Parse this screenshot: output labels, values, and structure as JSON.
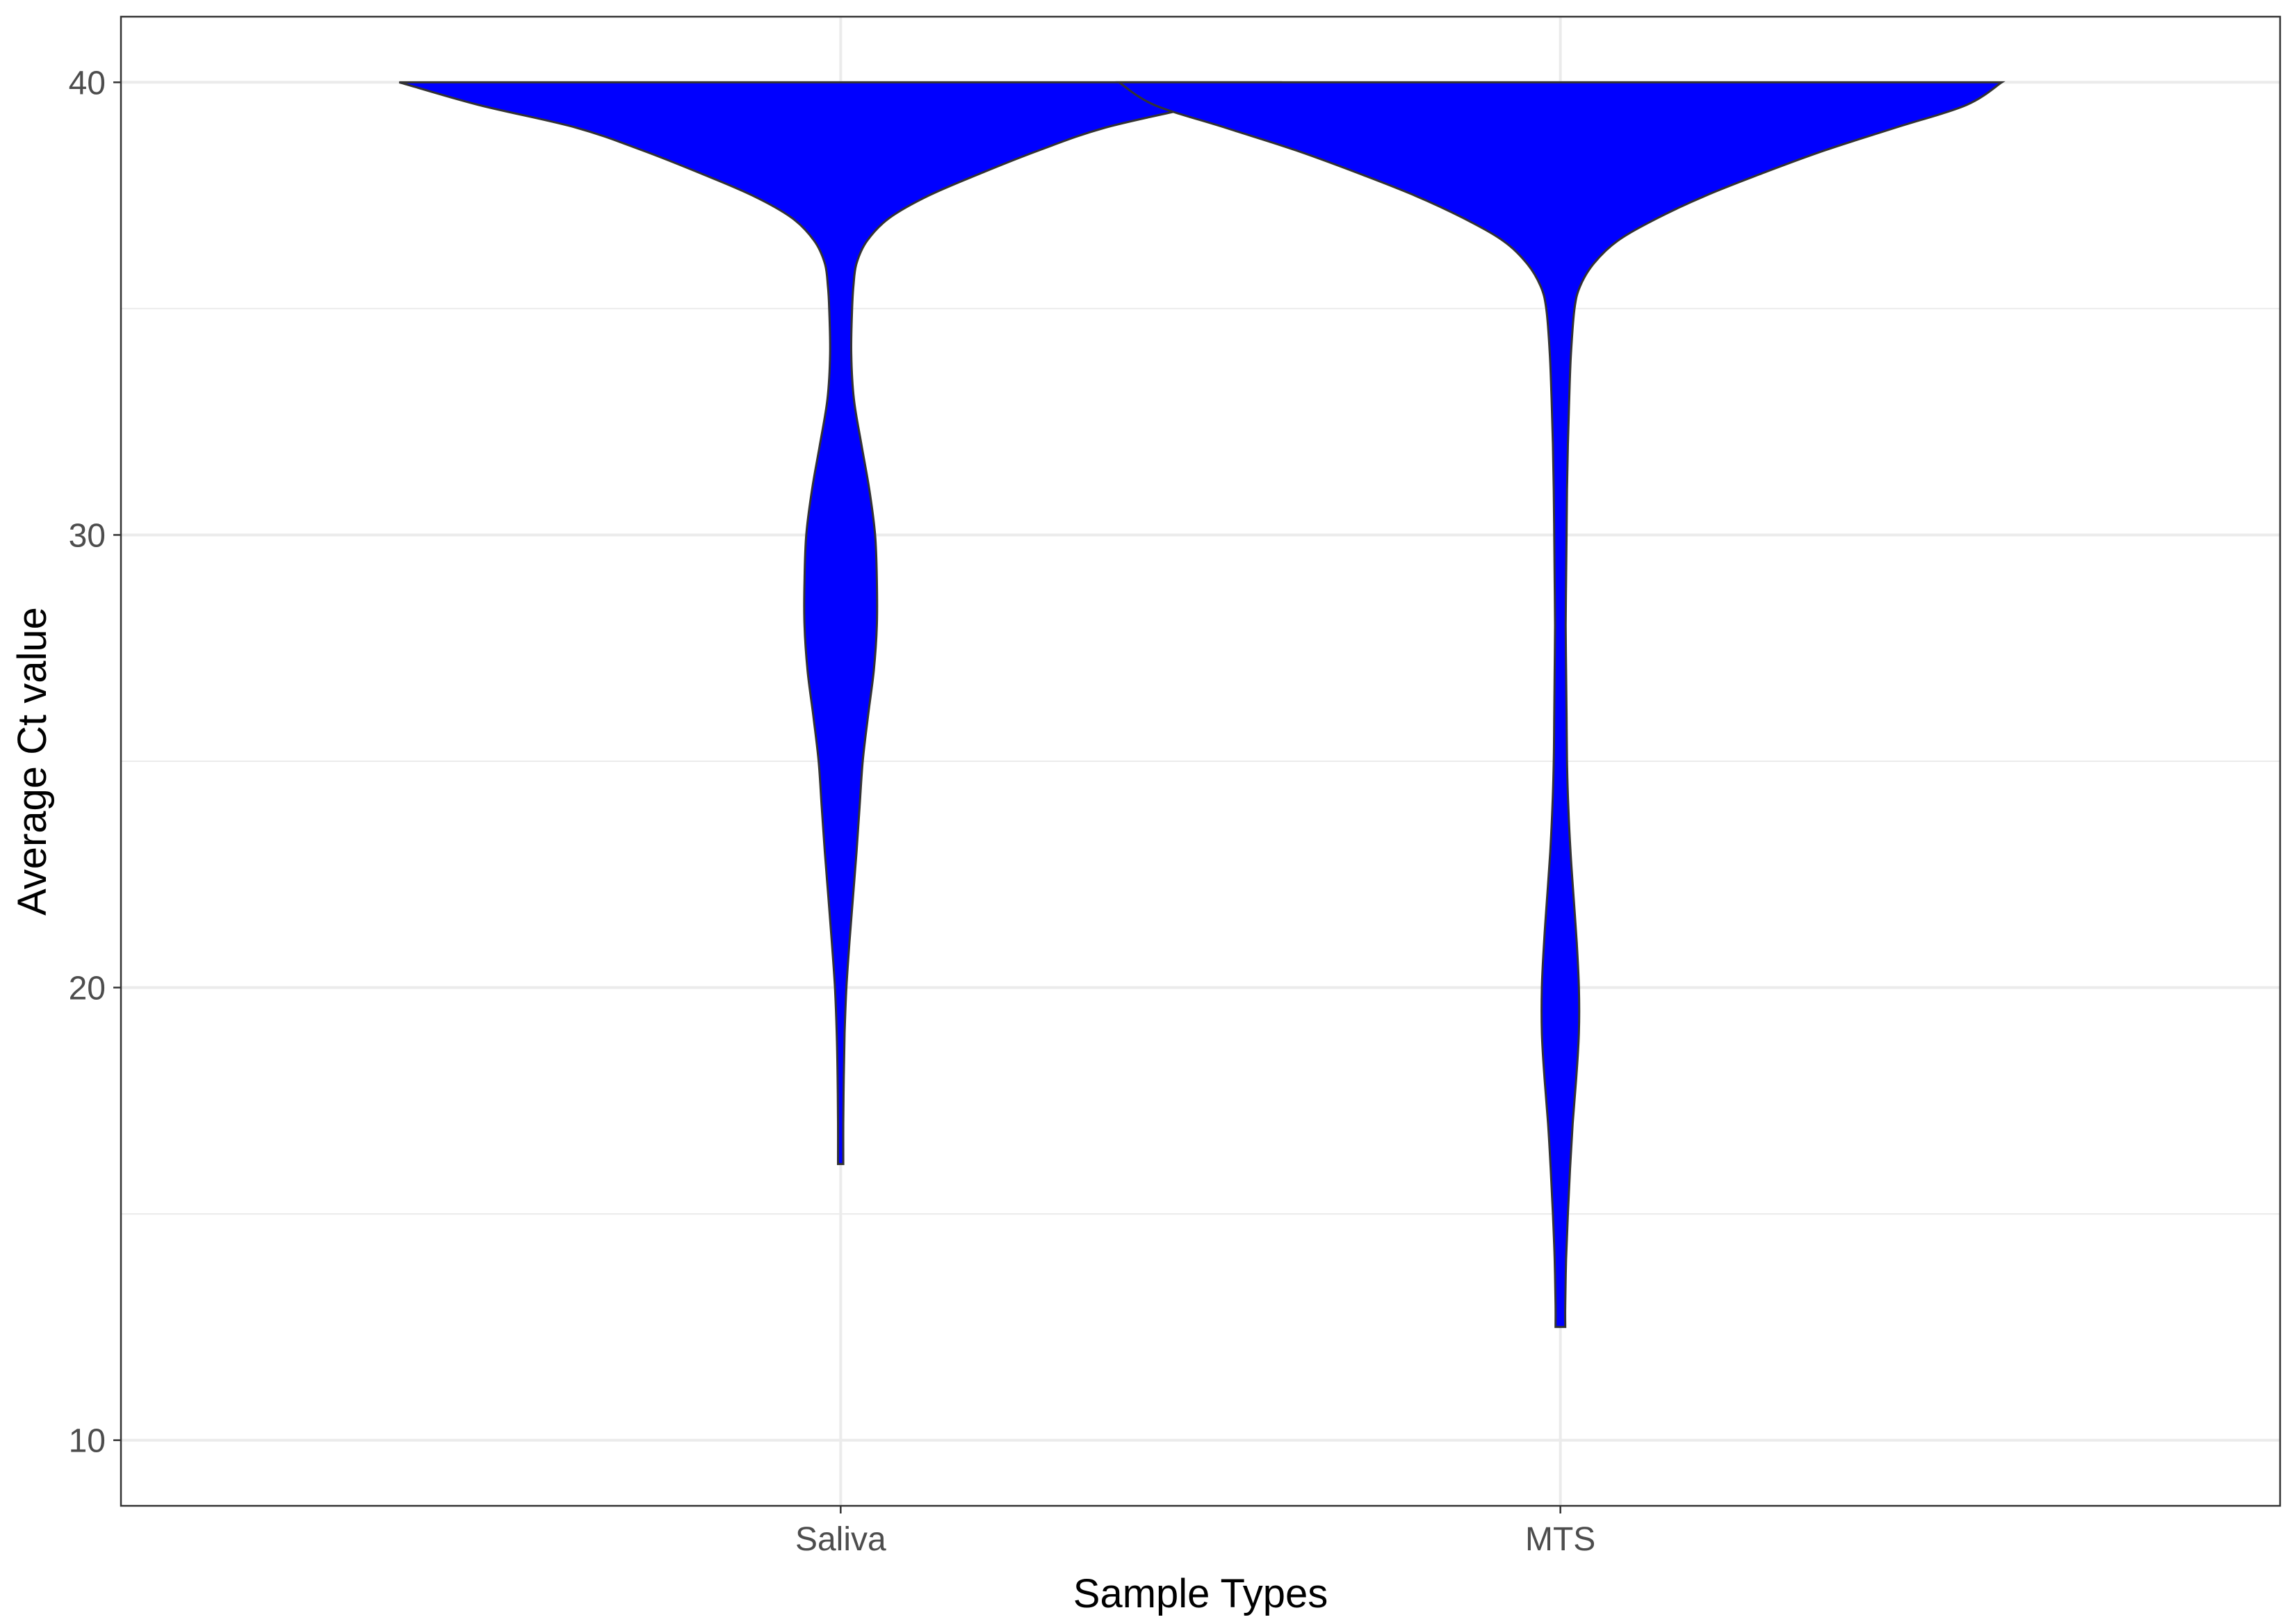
{
  "chart_data": {
    "type": "violin",
    "title": "",
    "xlabel": "Sample Types",
    "ylabel": "Average Ct value",
    "categories": [
      "Saliva",
      "MTS"
    ],
    "ylim": [
      8.55,
      41.45
    ],
    "yticks": [
      10,
      20,
      30,
      40
    ],
    "y_tick_labels": [
      "10",
      "20",
      "30",
      "40"
    ],
    "grid": true,
    "fill_color": "#0000ff",
    "outline_color": "#333333",
    "series": [
      {
        "category": "Saliva",
        "y_range": [
          16.1,
          40
        ],
        "density_profile": [
          {
            "y": 40.0,
            "half_width": 1.0
          },
          {
            "y": 39.5,
            "half_width": 0.82
          },
          {
            "y": 39.0,
            "half_width": 0.6
          },
          {
            "y": 38.5,
            "half_width": 0.45
          },
          {
            "y": 38.0,
            "half_width": 0.32
          },
          {
            "y": 37.5,
            "half_width": 0.2
          },
          {
            "y": 37.0,
            "half_width": 0.11
          },
          {
            "y": 36.5,
            "half_width": 0.06
          },
          {
            "y": 36.0,
            "half_width": 0.036
          },
          {
            "y": 35.5,
            "half_width": 0.029
          },
          {
            "y": 35.0,
            "half_width": 0.026
          },
          {
            "y": 34.0,
            "half_width": 0.024
          },
          {
            "y": 33.0,
            "half_width": 0.03
          },
          {
            "y": 32.0,
            "half_width": 0.047
          },
          {
            "y": 31.0,
            "half_width": 0.065
          },
          {
            "y": 30.0,
            "half_width": 0.078
          },
          {
            "y": 29.0,
            "half_width": 0.082
          },
          {
            "y": 28.0,
            "half_width": 0.082
          },
          {
            "y": 27.0,
            "half_width": 0.075
          },
          {
            "y": 26.0,
            "half_width": 0.062
          },
          {
            "y": 25.0,
            "half_width": 0.05
          },
          {
            "y": 24.0,
            "half_width": 0.043
          },
          {
            "y": 23.0,
            "half_width": 0.036
          },
          {
            "y": 22.0,
            "half_width": 0.028
          },
          {
            "y": 21.0,
            "half_width": 0.02
          },
          {
            "y": 20.0,
            "half_width": 0.013
          },
          {
            "y": 19.0,
            "half_width": 0.009
          },
          {
            "y": 18.0,
            "half_width": 0.007
          },
          {
            "y": 17.0,
            "half_width": 0.006
          },
          {
            "y": 16.1,
            "half_width": 0.006
          }
        ]
      },
      {
        "category": "MTS",
        "y_range": [
          12.5,
          40
        ],
        "density_profile": [
          {
            "y": 40.0,
            "half_width": 1.0
          },
          {
            "y": 39.5,
            "half_width": 0.92
          },
          {
            "y": 39.0,
            "half_width": 0.76
          },
          {
            "y": 38.5,
            "half_width": 0.6
          },
          {
            "y": 38.0,
            "half_width": 0.46
          },
          {
            "y": 37.5,
            "half_width": 0.33
          },
          {
            "y": 37.0,
            "half_width": 0.22
          },
          {
            "y": 36.5,
            "half_width": 0.13
          },
          {
            "y": 36.0,
            "half_width": 0.076
          },
          {
            "y": 35.5,
            "half_width": 0.045
          },
          {
            "y": 35.0,
            "half_width": 0.032
          },
          {
            "y": 34.0,
            "half_width": 0.024
          },
          {
            "y": 33.0,
            "half_width": 0.02
          },
          {
            "y": 32.0,
            "half_width": 0.017
          },
          {
            "y": 31.0,
            "half_width": 0.015
          },
          {
            "y": 30.0,
            "half_width": 0.014
          },
          {
            "y": 29.0,
            "half_width": 0.013
          },
          {
            "y": 28.0,
            "half_width": 0.012
          },
          {
            "y": 27.0,
            "half_width": 0.013
          },
          {
            "y": 26.0,
            "half_width": 0.014
          },
          {
            "y": 25.0,
            "half_width": 0.015
          },
          {
            "y": 24.0,
            "half_width": 0.018
          },
          {
            "y": 23.0,
            "half_width": 0.023
          },
          {
            "y": 22.0,
            "half_width": 0.03
          },
          {
            "y": 21.0,
            "half_width": 0.037
          },
          {
            "y": 20.0,
            "half_width": 0.042
          },
          {
            "y": 19.0,
            "half_width": 0.042
          },
          {
            "y": 18.0,
            "half_width": 0.036
          },
          {
            "y": 17.0,
            "half_width": 0.028
          },
          {
            "y": 16.0,
            "half_width": 0.022
          },
          {
            "y": 15.0,
            "half_width": 0.017
          },
          {
            "y": 14.0,
            "half_width": 0.013
          },
          {
            "y": 13.0,
            "half_width": 0.011
          },
          {
            "y": 12.5,
            "half_width": 0.011
          }
        ]
      }
    ]
  }
}
